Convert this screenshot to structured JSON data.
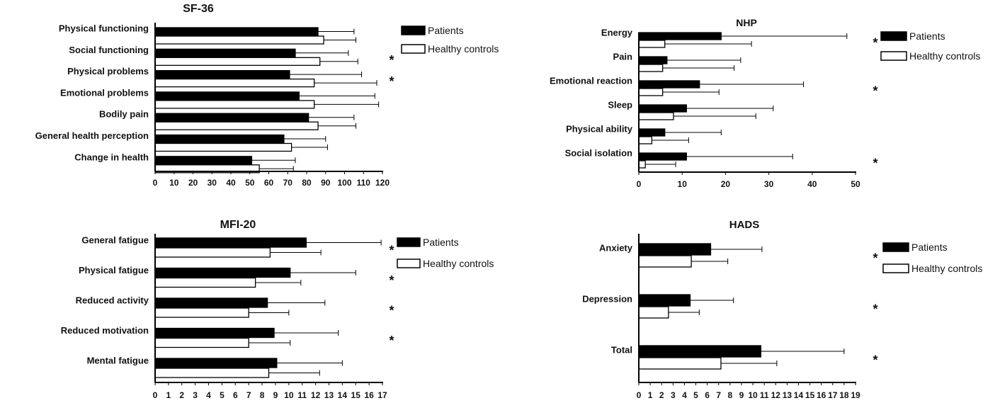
{
  "chart_data": [
    {
      "id": "sf36",
      "type": "bar",
      "orientation": "horizontal",
      "title": "SF-36",
      "categories": [
        "Physical functioning",
        "Social functioning",
        "Physical problems",
        "Emotional problems",
        "Bodily pain",
        "General health perception",
        "Change in health"
      ],
      "series": [
        {
          "name": "Patients",
          "fill": "#000000",
          "values": [
            86,
            74,
            71,
            76,
            81,
            68,
            51
          ],
          "errors": [
            19,
            28,
            38,
            40,
            24,
            22,
            23
          ]
        },
        {
          "name": "Healthy controls",
          "fill": "#ffffff",
          "values": [
            89,
            87,
            84,
            84,
            86,
            72,
            55
          ],
          "errors": [
            17,
            20,
            33,
            34,
            20,
            19,
            18
          ]
        }
      ],
      "significant": [
        false,
        true,
        true,
        false,
        false,
        false,
        false
      ],
      "xlim": [
        0,
        120
      ],
      "xticks": [
        0,
        10,
        20,
        30,
        40,
        50,
        60,
        70,
        80,
        90,
        100,
        110,
        120
      ],
      "legend_position": "right"
    },
    {
      "id": "nhp",
      "type": "bar",
      "orientation": "horizontal",
      "title": "NHP",
      "categories": [
        "Energy",
        "Pain",
        "Emotional reaction",
        "Sleep",
        "Physical ability",
        "Social isolation"
      ],
      "series": [
        {
          "name": "Patients",
          "fill": "#000000",
          "values": [
            19,
            6.5,
            14,
            11,
            6,
            11
          ],
          "errors": [
            29,
            17,
            24,
            20,
            13,
            24.5
          ]
        },
        {
          "name": "Healthy controls",
          "fill": "#ffffff",
          "values": [
            6,
            5.5,
            5.5,
            8,
            3,
            1.5
          ],
          "errors": [
            20,
            16.5,
            13,
            19,
            8.5,
            7
          ]
        }
      ],
      "significant": [
        true,
        false,
        true,
        false,
        false,
        true
      ],
      "xlim": [
        0,
        50
      ],
      "xticks": [
        0,
        10,
        20,
        30,
        40,
        50
      ],
      "legend_position": "right"
    },
    {
      "id": "mfi20",
      "type": "bar",
      "orientation": "horizontal",
      "title": "MFI-20",
      "categories": [
        "General fatigue",
        "Physical fatigue",
        "Reduced activity",
        "Reduced motivation",
        "Mental fatigue"
      ],
      "series": [
        {
          "name": "Patients",
          "fill": "#000000",
          "values": [
            11.3,
            10.1,
            8.4,
            8.9,
            9.1
          ],
          "errors": [
            5.6,
            4.9,
            4.3,
            4.8,
            4.9
          ],
          "star": [
            true,
            true,
            true,
            true,
            false
          ]
        },
        {
          "name": "Healthy controls",
          "fill": "#ffffff",
          "values": [
            8.6,
            7.5,
            7.0,
            7.0,
            8.5
          ],
          "errors": [
            3.8,
            3.4,
            3.0,
            3.1,
            3.8
          ]
        }
      ],
      "significant": [
        true,
        true,
        true,
        true,
        false
      ],
      "xlim": [
        0,
        17
      ],
      "xticks": [
        0,
        1,
        2,
        3,
        4,
        5,
        6,
        7,
        8,
        9,
        10,
        11,
        12,
        13,
        14,
        15,
        16,
        17
      ],
      "legend_position": "right"
    },
    {
      "id": "hads",
      "type": "bar",
      "orientation": "horizontal",
      "title": "HADS",
      "categories": [
        "Anxiety",
        "Depression",
        "Total"
      ],
      "series": [
        {
          "name": "Patients",
          "fill": "#000000",
          "values": [
            6.3,
            4.5,
            10.7
          ],
          "errors": [
            4.5,
            3.8,
            7.3
          ]
        },
        {
          "name": "Healthy controls",
          "fill": "#ffffff",
          "values": [
            4.6,
            2.6,
            7.2
          ],
          "errors": [
            3.2,
            2.7,
            4.9
          ]
        }
      ],
      "significant": [
        true,
        true,
        true
      ],
      "xlim": [
        0,
        19
      ],
      "xticks": [
        0,
        1,
        2,
        3,
        4,
        5,
        6,
        7,
        8,
        9,
        10,
        11,
        12,
        13,
        14,
        15,
        16,
        17,
        18,
        19
      ],
      "legend_position": "right"
    }
  ],
  "marker": "*"
}
